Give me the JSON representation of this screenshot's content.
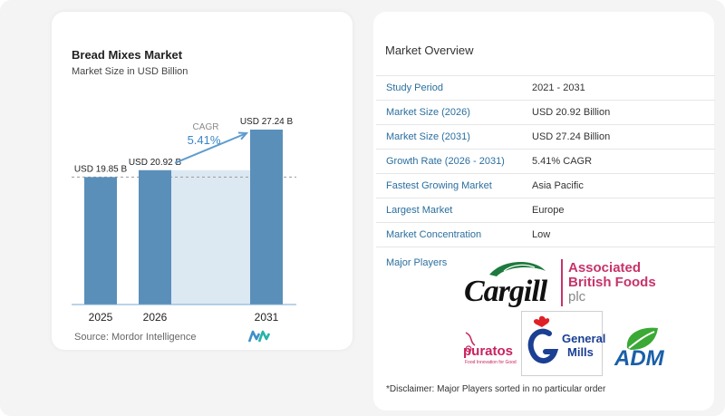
{
  "chart_data": {
    "type": "bar",
    "title": "Bread Mixes Market",
    "subtitle": "Market Size in USD Billion",
    "categories": [
      "2025",
      "2026",
      "2031"
    ],
    "values": [
      19.85,
      20.92,
      27.24
    ],
    "data_labels": [
      "USD 19.85 B",
      "USD 20.92 B",
      "USD 27.24 B"
    ],
    "cagr_label": "CAGR",
    "cagr_value": "5.41%",
    "colors": {
      "bar": "#5a8fba",
      "bar_edge": "#3f76a6",
      "shade": "#dce9f3",
      "arrow": "#5f9ccf",
      "baseline": "#7aa9cf"
    }
  },
  "source": {
    "text": "Source: Mordor Intelligence",
    "logo_icon": "mordor-intelligence-logo-icon"
  },
  "overview": {
    "title": "Market Overview",
    "rows": [
      {
        "label": "Study Period",
        "value": "2021 - 2031"
      },
      {
        "label": "Market Size (2026)",
        "value": "USD 20.92 Billion"
      },
      {
        "label": "Market Size (2031)",
        "value": "USD 27.24 Billion"
      },
      {
        "label": "Growth Rate (2026 - 2031)",
        "value": "5.41% CAGR"
      },
      {
        "label": "Fastest Growing Market",
        "value": "Asia Pacific"
      },
      {
        "label": "Largest Market",
        "value": "Europe"
      },
      {
        "label": "Market Concentration",
        "value": "Low"
      }
    ],
    "players_label": "Major Players",
    "players": [
      {
        "name": "Cargill",
        "logo_text": "Cargill"
      },
      {
        "name": "Associated British Foods plc",
        "logo_lines": [
          "Associated",
          "British Foods",
          "plc"
        ]
      },
      {
        "name": "Puratos",
        "logo_text": "puratos",
        "tagline": "Food Innovation for Good"
      },
      {
        "name": "General Mills",
        "logo_lines": [
          "General",
          "Mills"
        ]
      },
      {
        "name": "ADM",
        "logo_text": "ADM"
      }
    ],
    "disclaimer": "*Disclaimer: Major Players sorted in no particular order"
  }
}
